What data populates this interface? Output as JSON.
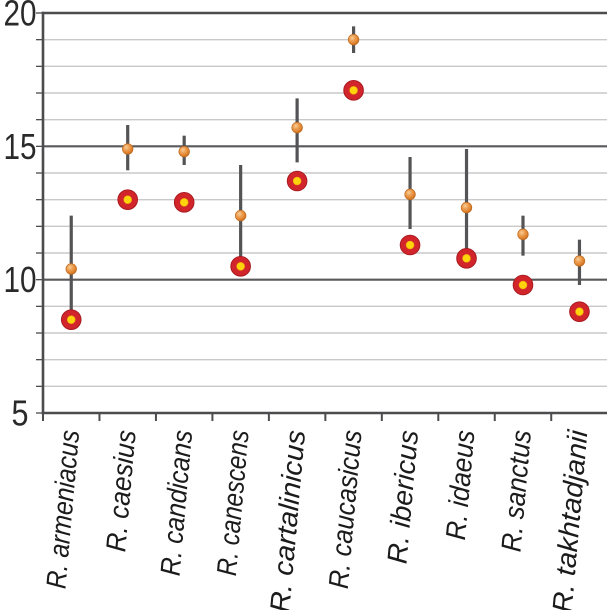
{
  "chart_data": {
    "type": "scatter",
    "title": "",
    "xlabel": "",
    "ylabel": "",
    "categories": [
      "R. armeniacus",
      "R. caesius",
      "R. candicans",
      "R. canescens",
      "R. cartalinicus",
      "R. caucasicus",
      "R. ibericus",
      "R. idaeus",
      "R. sanctus",
      "R. takhtadjanii"
    ],
    "series": [
      {
        "name": "upper-orange-dot",
        "marker": "small-orange-sphere",
        "values": [
          10.4,
          14.9,
          14.8,
          12.4,
          15.7,
          19.0,
          13.2,
          12.7,
          11.7,
          10.7
        ]
      },
      {
        "name": "lower-ring-marker",
        "marker": "red-ring-yellow-center",
        "values": [
          8.5,
          13.0,
          12.9,
          10.5,
          13.7,
          17.1,
          11.3,
          10.8,
          9.8,
          8.8
        ]
      }
    ],
    "error_bars": {
      "attached_to": "upper-orange-dot",
      "low": [
        8.5,
        14.1,
        14.3,
        10.5,
        14.4,
        18.5,
        11.9,
        10.5,
        10.9,
        9.8
      ],
      "high": [
        12.4,
        15.8,
        15.4,
        14.3,
        16.8,
        19.5,
        14.6,
        14.9,
        12.4,
        11.5
      ]
    },
    "ylim": [
      5,
      20
    ],
    "yticks_labeled": [
      20,
      15,
      10,
      5
    ],
    "minor_tick_step": 1,
    "grid": {
      "minor": true,
      "major_values": [
        10,
        15
      ]
    },
    "legend": "none"
  },
  "style": {
    "background": "#ffffff",
    "axis_color": "#4c4c4e",
    "major_grid_color": "#59595b",
    "minor_grid_color": "#c9c9c9",
    "whisker_color": "#545456",
    "dot_fill": "#e0832f",
    "dot_highlight": "#f8cf9a",
    "dot_edge": "#c06a1e",
    "ring_red": "#d2242b",
    "ring_edge": "#a81b20",
    "ring_center_yellow": "#ffd40a",
    "ring_center_edge": "#e89b12",
    "ytick_label_color": "#2a2a2a",
    "xcat_label_color": "#1b1b1b"
  }
}
